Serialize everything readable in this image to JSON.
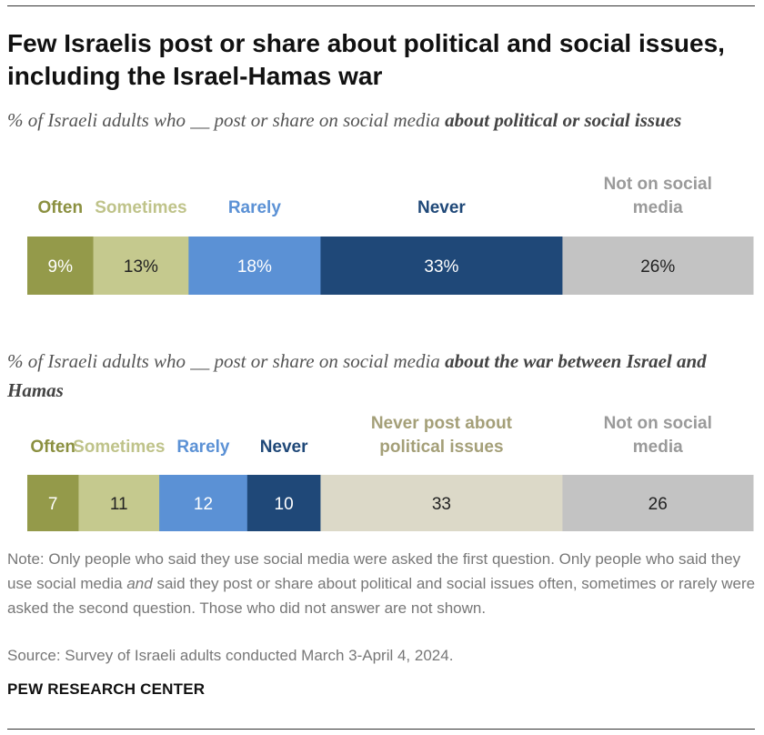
{
  "title": "Few Israelis post or share about political and social issues, including the Israel-Hamas war",
  "subtitle1": {
    "prefix": "% of Israeli adults who __ post or share on social media ",
    "emphasis": "about political or social issues"
  },
  "subtitle2": {
    "prefix": "% of Israeli adults who __ post or share on social media ",
    "emphasis": "about the war between Israel and Hamas"
  },
  "note": {
    "part1": "Note: Only people who said they use social media were asked the first question. Only people who said they use social media ",
    "italic": "and",
    "part2": " said they post or share about political and social issues often, sometimes or rarely were asked the second question. Those who did not answer are not shown."
  },
  "source": "Source: Survey of Israeli adults conducted March 3-April 4, 2024.",
  "brand": "PEW RESEARCH CENTER",
  "colors": {
    "often": "#949a4a",
    "sometimes": "#c5c98e",
    "rarely": "#5b91d5",
    "never": "#1f4878",
    "never_political": "#dcd9c8",
    "not_on_social": "#c3c3c3"
  },
  "chart_data": [
    {
      "type": "bar",
      "orientation": "horizontal-stacked",
      "unit": "%",
      "series": [
        {
          "name": "Often",
          "value": 9,
          "label": "9%",
          "color": "#949a4a",
          "legend_color": "#8b9040",
          "text_color": "#ffffff"
        },
        {
          "name": "Sometimes",
          "value": 13,
          "label": "13%",
          "color": "#c5c98e",
          "legend_color": "#bfc38a",
          "text_color": "#222222"
        },
        {
          "name": "Rarely",
          "value": 18,
          "label": "18%",
          "color": "#5b91d5",
          "legend_color": "#5b91d5",
          "text_color": "#ffffff"
        },
        {
          "name": "Never",
          "value": 33,
          "label": "33%",
          "color": "#1f4878",
          "legend_color": "#1f4878",
          "text_color": "#ffffff"
        },
        {
          "name": "Not on social media",
          "value": 26,
          "label": "26%",
          "color": "#c3c3c3",
          "legend_color": "#9a9a9a",
          "text_color": "#222222"
        }
      ]
    },
    {
      "type": "bar",
      "orientation": "horizontal-stacked",
      "unit": "%",
      "series": [
        {
          "name": "Often",
          "value": 7,
          "label": "7",
          "color": "#949a4a",
          "legend_color": "#8b9040",
          "text_color": "#ffffff"
        },
        {
          "name": "Sometimes",
          "value": 11,
          "label": "11",
          "color": "#c5c98e",
          "legend_color": "#bfc38a",
          "text_color": "#222222"
        },
        {
          "name": "Rarely",
          "value": 12,
          "label": "12",
          "color": "#5b91d5",
          "legend_color": "#5b91d5",
          "text_color": "#ffffff"
        },
        {
          "name": "Never",
          "value": 10,
          "label": "10",
          "color": "#1f4878",
          "legend_color": "#1f4878",
          "text_color": "#ffffff"
        },
        {
          "name": "Never post about political issues",
          "value": 33,
          "label": "33",
          "color": "#dcd9c8",
          "legend_color": "#a49f78",
          "text_color": "#222222"
        },
        {
          "name": "Not on social media",
          "value": 26,
          "label": "26",
          "color": "#c3c3c3",
          "legend_color": "#9a9a9a",
          "text_color": "#222222"
        }
      ]
    }
  ]
}
